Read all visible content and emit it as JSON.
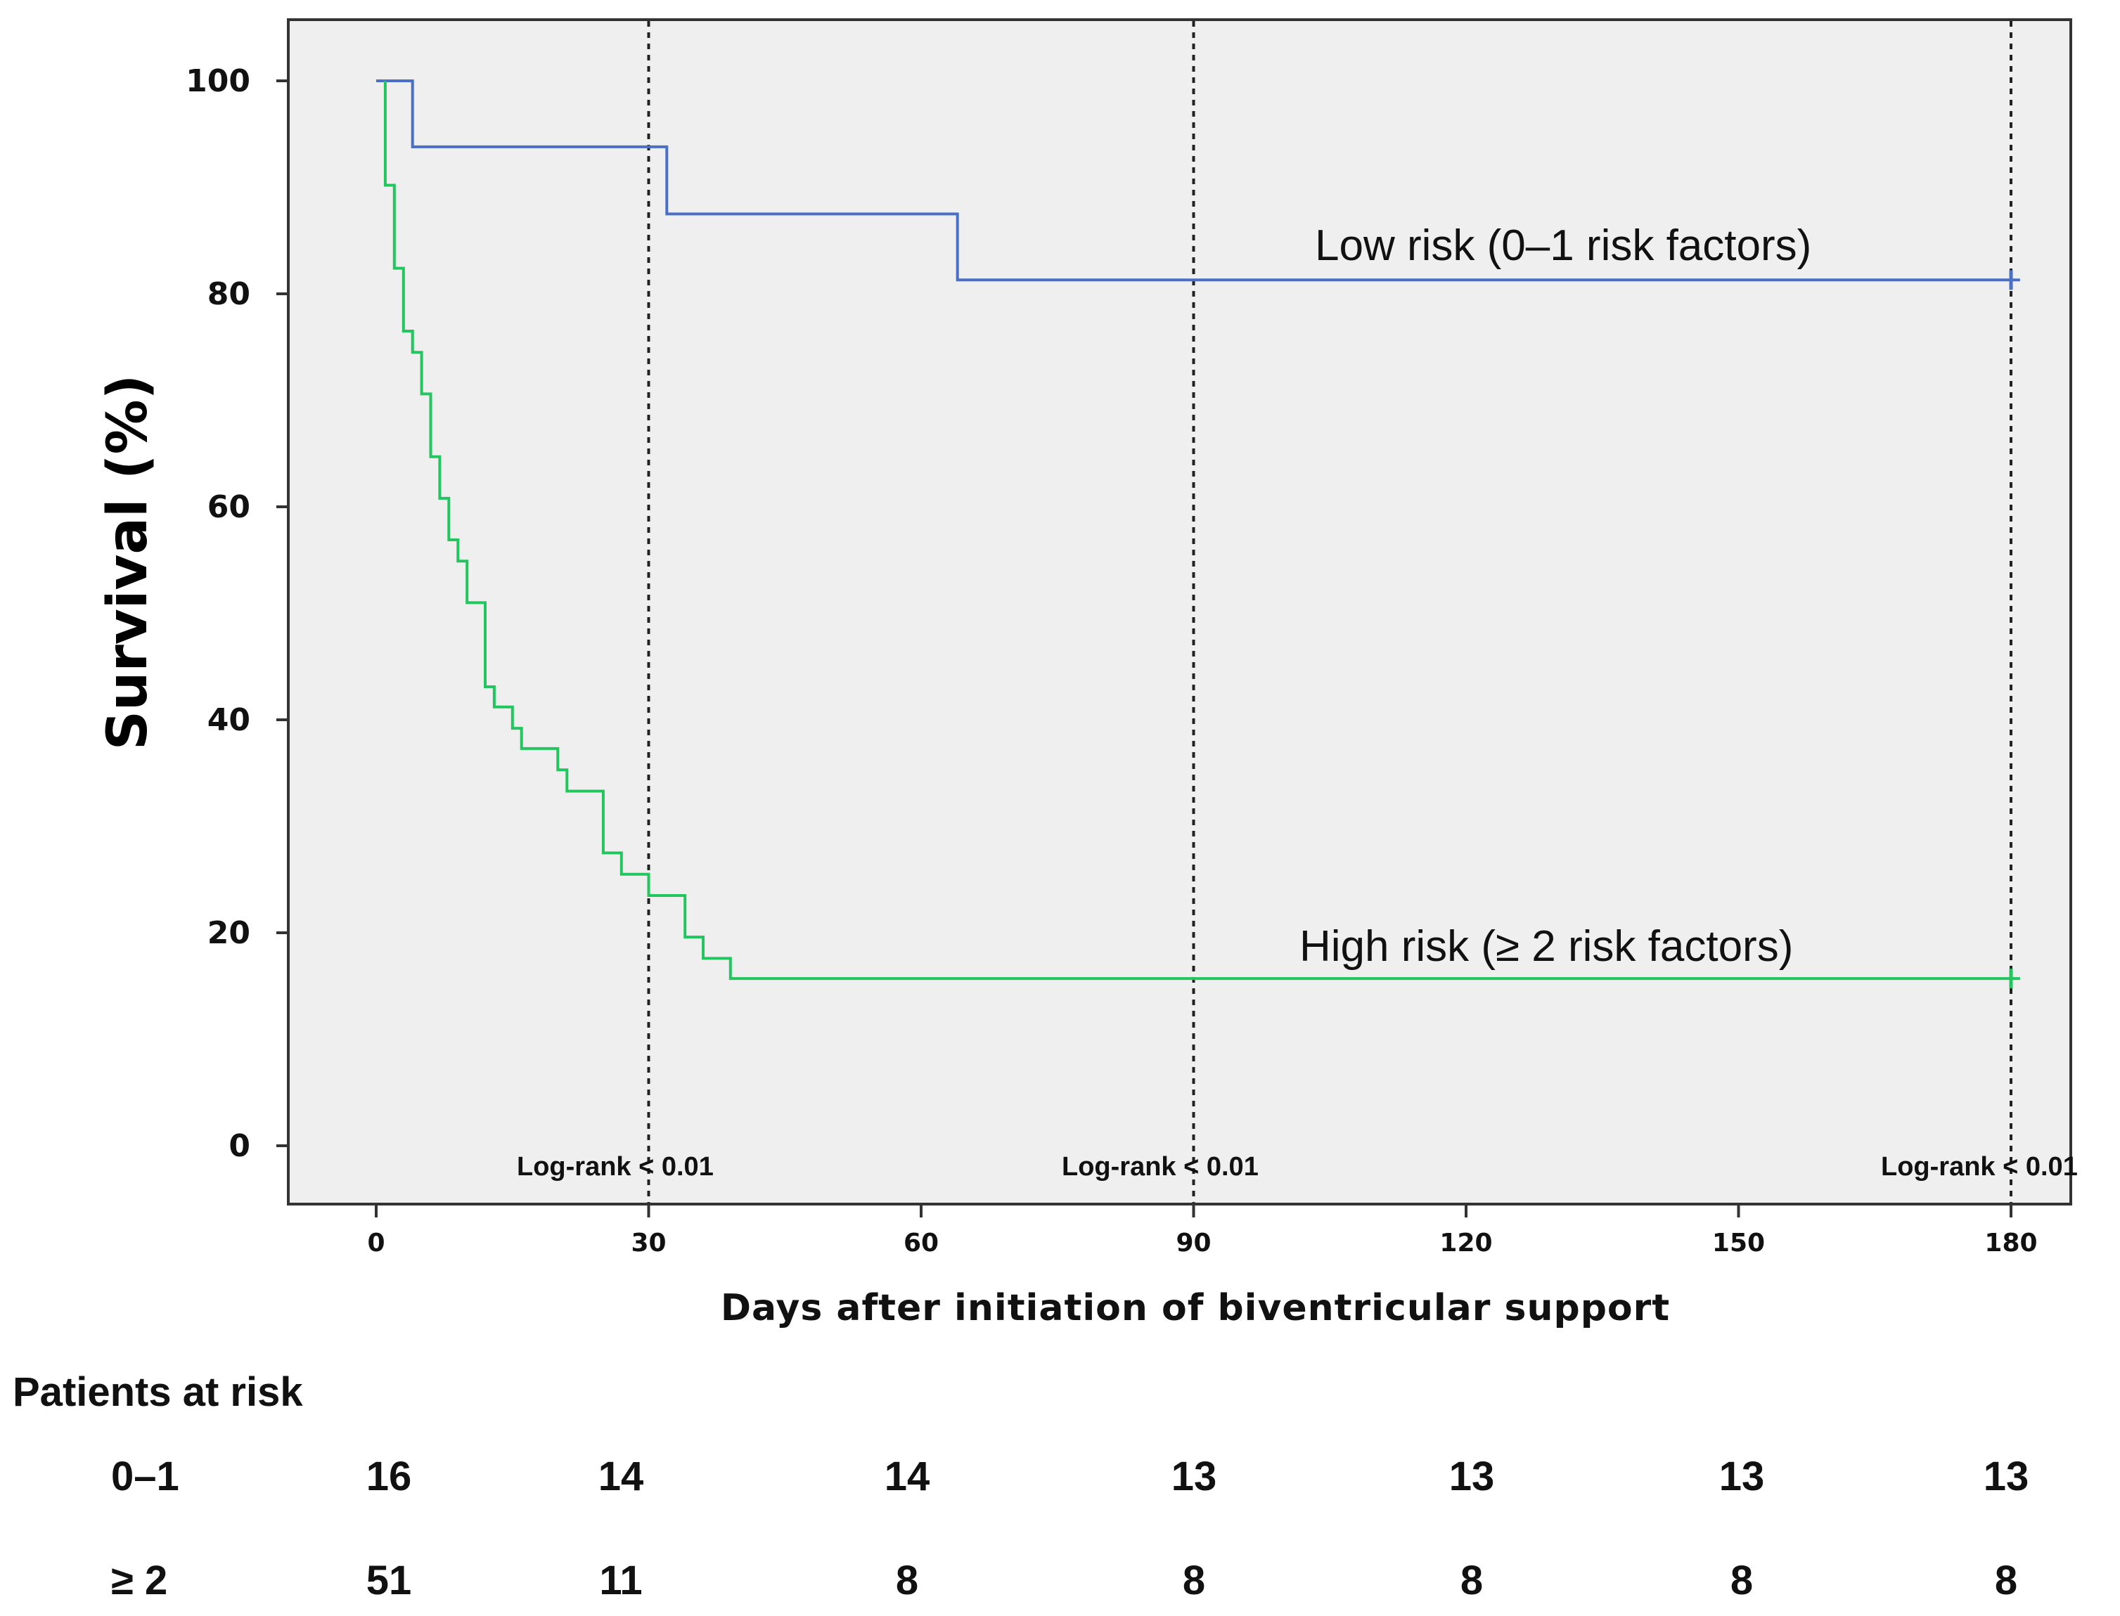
{
  "chart_data": {
    "type": "line",
    "subtype": "kaplan-meier",
    "title": "",
    "xlabel": "Days after initiation of biventricular support",
    "ylabel": "Survival (%)",
    "xlim": [
      -15,
      187
    ],
    "ylim": [
      -6,
      106
    ],
    "xticks": [
      0,
      30,
      60,
      90,
      120,
      150,
      180
    ],
    "yticks": [
      0,
      20,
      40,
      60,
      80,
      100
    ],
    "grid": false,
    "reference_lines": [
      {
        "x": 30,
        "label": "Log-rank < 0.01"
      },
      {
        "x": 90,
        "label": "Log-rank < 0.01"
      },
      {
        "x": 180,
        "label": "Log-rank < 0.01"
      }
    ],
    "series": [
      {
        "name": "Low risk (0–1  risk factors)",
        "color": "#4a6fc7",
        "steps": [
          [
            0,
            100
          ],
          [
            4,
            100
          ],
          [
            4,
            93.8
          ],
          [
            32,
            93.8
          ],
          [
            32,
            87.5
          ],
          [
            64,
            87.5
          ],
          [
            64,
            81.3
          ],
          [
            181,
            81.3
          ]
        ],
        "censor": [
          [
            180,
            81.3
          ]
        ]
      },
      {
        "name": "High risk (≥ 2 risk factors)",
        "color": "#22c55e",
        "steps": [
          [
            1,
            100
          ],
          [
            1,
            90.2
          ],
          [
            2,
            90.2
          ],
          [
            2,
            82.4
          ],
          [
            3,
            82.4
          ],
          [
            3,
            76.5
          ],
          [
            4,
            76.5
          ],
          [
            4,
            74.5
          ],
          [
            5,
            74.5
          ],
          [
            5,
            70.6
          ],
          [
            6,
            70.6
          ],
          [
            6,
            64.7
          ],
          [
            7,
            64.7
          ],
          [
            7,
            60.8
          ],
          [
            8,
            60.8
          ],
          [
            8,
            56.9
          ],
          [
            9,
            56.9
          ],
          [
            9,
            54.9
          ],
          [
            10,
            54.9
          ],
          [
            10,
            51.0
          ],
          [
            12,
            51.0
          ],
          [
            12,
            43.1
          ],
          [
            13,
            43.1
          ],
          [
            13,
            41.2
          ],
          [
            15,
            41.2
          ],
          [
            15,
            39.2
          ],
          [
            16,
            39.2
          ],
          [
            16,
            37.3
          ],
          [
            20,
            37.3
          ],
          [
            20,
            35.3
          ],
          [
            21,
            35.3
          ],
          [
            21,
            33.3
          ],
          [
            25,
            33.3
          ],
          [
            25,
            27.5
          ],
          [
            27,
            27.5
          ],
          [
            27,
            25.5
          ],
          [
            30,
            25.5
          ],
          [
            30,
            23.5
          ],
          [
            34,
            23.5
          ],
          [
            34,
            19.6
          ],
          [
            36,
            19.6
          ],
          [
            36,
            17.6
          ],
          [
            39,
            17.6
          ],
          [
            39,
            15.7
          ],
          [
            181,
            15.7
          ]
        ],
        "censor": [
          [
            180,
            15.7
          ]
        ]
      }
    ]
  },
  "series_labels": {
    "low": "Low risk (0–1  risk factors)",
    "high": "High risk (≥ 2 risk factors)"
  },
  "logrank_labels": [
    "Log-rank < 0.01",
    "Log-rank < 0.01",
    "Log-rank < 0.01"
  ],
  "risk_table": {
    "title": "Patients at risk",
    "rows": [
      {
        "label": "0–1",
        "values": [
          "16",
          "14",
          "14",
          "13",
          "13",
          "13",
          "13"
        ]
      },
      {
        "label": "≥ 2",
        "values": [
          "51",
          "11",
          "8",
          "8",
          "8",
          "8",
          "8"
        ]
      }
    ]
  },
  "colors": {
    "panel_background": "#efefef",
    "frame": "#333333",
    "low_risk_line": "#4a6fc7",
    "high_risk_line": "#22c55e",
    "reference_line": "#222222"
  }
}
